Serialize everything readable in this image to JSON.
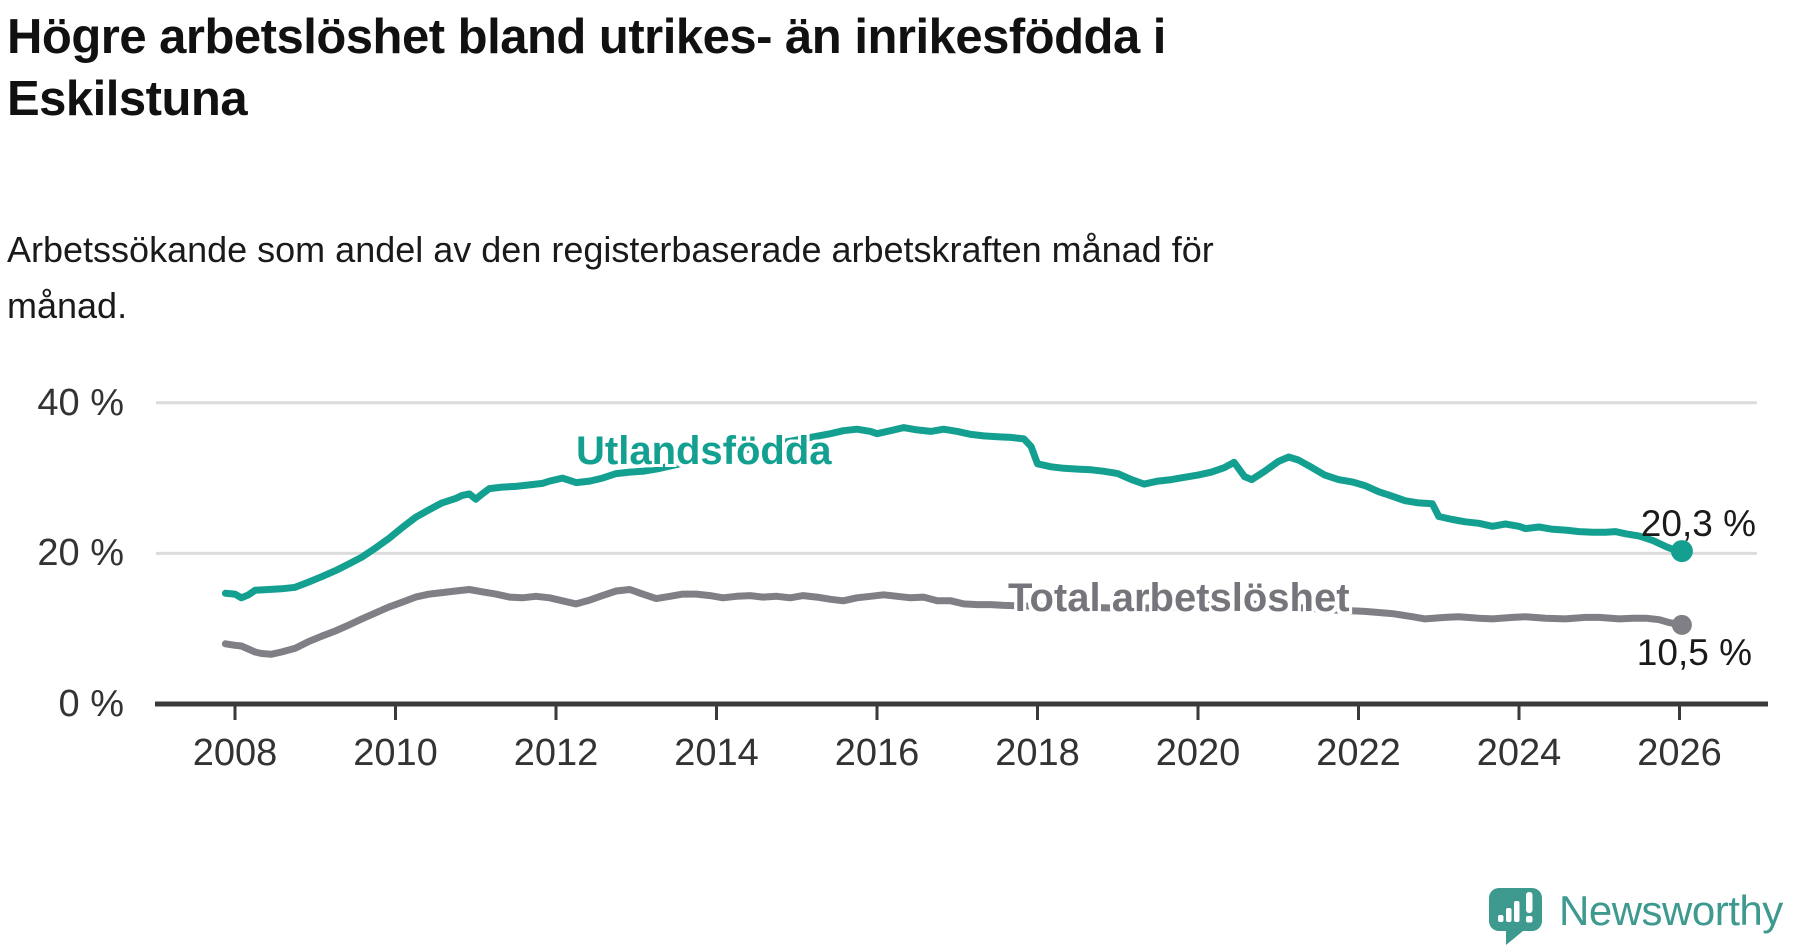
{
  "title": {
    "line1": "Högre arbetslöshet bland utrikes- än inrikesfödda i",
    "line2": "Eskilstuna"
  },
  "subtitle": {
    "line1": "Arbetssökande som andel av den registerbaserade arbetskraften månad för",
    "line2": "månad."
  },
  "colors": {
    "gridline": "#dcdcdc",
    "axis": "#3a3a3a",
    "tick_label": "#333333",
    "title": "#111111",
    "end_label": "#1a1a1a",
    "teal": "#14a091",
    "gray": "#807f86",
    "gray_label": "#76757c"
  },
  "branding": {
    "wordmark": "Newsworthy",
    "logo_color": "#3e998f",
    "logo_icon": "speech-bubble-with-bar-chart-and-exclamation"
  },
  "chart_data": {
    "type": "line",
    "title": "Högre arbetslöshet bland utrikes- än inrikesfödda i Eskilstuna",
    "subtitle": "Arbetssökande som andel av den registerbaserade arbetskraften månad för månad.",
    "xlabel": "",
    "ylabel": "",
    "grid": "horizontal",
    "legend_position": "inline-labels",
    "x_axis": {
      "min": 2007.0,
      "max": 2027.1,
      "ticks": [
        2008,
        2010,
        2012,
        2014,
        2016,
        2018,
        2020,
        2022,
        2024,
        2026
      ]
    },
    "y_axis": {
      "min": 0,
      "max": 42,
      "ticks": [
        {
          "value": 0,
          "label": "0 %"
        },
        {
          "value": 20,
          "label": "20 %"
        },
        {
          "value": 40,
          "label": "40 %"
        }
      ]
    },
    "series": [
      {
        "name": "Utlandsfödda",
        "color": "#14a091",
        "label_color": "#14a091",
        "end_label": "20,3 %",
        "end_value": 20.3,
        "dot_radius": 11,
        "points": [
          [
            2007.88,
            14.7
          ],
          [
            2008.0,
            14.6
          ],
          [
            2008.08,
            14.1
          ],
          [
            2008.17,
            14.5
          ],
          [
            2008.25,
            15.1
          ],
          [
            2008.42,
            15.2
          ],
          [
            2008.58,
            15.3
          ],
          [
            2008.75,
            15.5
          ],
          [
            2008.92,
            16.2
          ],
          [
            2009.08,
            16.9
          ],
          [
            2009.25,
            17.7
          ],
          [
            2009.42,
            18.6
          ],
          [
            2009.58,
            19.5
          ],
          [
            2009.75,
            20.7
          ],
          [
            2009.92,
            22.0
          ],
          [
            2010.08,
            23.4
          ],
          [
            2010.25,
            24.8
          ],
          [
            2010.42,
            25.8
          ],
          [
            2010.58,
            26.7
          ],
          [
            2010.75,
            27.3
          ],
          [
            2010.83,
            27.7
          ],
          [
            2010.92,
            27.9
          ],
          [
            2011.0,
            27.2
          ],
          [
            2011.08,
            27.9
          ],
          [
            2011.17,
            28.6
          ],
          [
            2011.33,
            28.8
          ],
          [
            2011.5,
            28.9
          ],
          [
            2011.67,
            29.1
          ],
          [
            2011.83,
            29.3
          ],
          [
            2011.92,
            29.6
          ],
          [
            2012.08,
            30.0
          ],
          [
            2012.25,
            29.4
          ],
          [
            2012.42,
            29.6
          ],
          [
            2012.58,
            30.0
          ],
          [
            2012.75,
            30.6
          ],
          [
            2012.92,
            30.8
          ],
          [
            2013.08,
            30.9
          ],
          [
            2013.25,
            31.2
          ],
          [
            2013.42,
            31.6
          ],
          [
            2013.67,
            32.2
          ],
          [
            2013.92,
            32.8
          ],
          [
            2014.17,
            33.3
          ],
          [
            2014.42,
            33.9
          ],
          [
            2014.67,
            34.4
          ],
          [
            2014.92,
            34.9
          ],
          [
            2015.17,
            35.4
          ],
          [
            2015.42,
            35.9
          ],
          [
            2015.58,
            36.3
          ],
          [
            2015.75,
            36.5
          ],
          [
            2015.92,
            36.2
          ],
          [
            2016.0,
            35.9
          ],
          [
            2016.17,
            36.3
          ],
          [
            2016.33,
            36.7
          ],
          [
            2016.5,
            36.4
          ],
          [
            2016.67,
            36.2
          ],
          [
            2016.83,
            36.5
          ],
          [
            2017.0,
            36.2
          ],
          [
            2017.17,
            35.8
          ],
          [
            2017.33,
            35.6
          ],
          [
            2017.5,
            35.5
          ],
          [
            2017.67,
            35.4
          ],
          [
            2017.83,
            35.2
          ],
          [
            2017.92,
            34.2
          ],
          [
            2018.0,
            31.9
          ],
          [
            2018.17,
            31.5
          ],
          [
            2018.33,
            31.3
          ],
          [
            2018.5,
            31.2
          ],
          [
            2018.67,
            31.1
          ],
          [
            2018.83,
            30.9
          ],
          [
            2019.0,
            30.6
          ],
          [
            2019.17,
            29.8
          ],
          [
            2019.33,
            29.2
          ],
          [
            2019.5,
            29.6
          ],
          [
            2019.67,
            29.8
          ],
          [
            2019.83,
            30.1
          ],
          [
            2020.0,
            30.4
          ],
          [
            2020.17,
            30.8
          ],
          [
            2020.33,
            31.4
          ],
          [
            2020.45,
            32.1
          ],
          [
            2020.58,
            30.2
          ],
          [
            2020.67,
            29.8
          ],
          [
            2020.83,
            30.9
          ],
          [
            2021.0,
            32.2
          ],
          [
            2021.13,
            32.8
          ],
          [
            2021.25,
            32.4
          ],
          [
            2021.42,
            31.4
          ],
          [
            2021.58,
            30.4
          ],
          [
            2021.75,
            29.8
          ],
          [
            2021.92,
            29.5
          ],
          [
            2022.08,
            29.0
          ],
          [
            2022.25,
            28.2
          ],
          [
            2022.42,
            27.6
          ],
          [
            2022.58,
            27.0
          ],
          [
            2022.75,
            26.7
          ],
          [
            2022.92,
            26.6
          ],
          [
            2023.0,
            24.9
          ],
          [
            2023.17,
            24.5
          ],
          [
            2023.33,
            24.2
          ],
          [
            2023.5,
            24.0
          ],
          [
            2023.67,
            23.6
          ],
          [
            2023.83,
            23.9
          ],
          [
            2024.0,
            23.6
          ],
          [
            2024.08,
            23.3
          ],
          [
            2024.25,
            23.5
          ],
          [
            2024.42,
            23.2
          ],
          [
            2024.58,
            23.1
          ],
          [
            2024.75,
            22.9
          ],
          [
            2024.92,
            22.8
          ],
          [
            2025.08,
            22.8
          ],
          [
            2025.2,
            22.9
          ],
          [
            2025.33,
            22.6
          ],
          [
            2025.5,
            22.3
          ],
          [
            2025.67,
            21.7
          ],
          [
            2025.83,
            20.9
          ],
          [
            2025.95,
            20.4
          ],
          [
            2026.03,
            20.3
          ]
        ]
      },
      {
        "name": "Total arbetslöshet",
        "color": "#807f86",
        "label_color": "#76757c",
        "end_label": "10,5 %",
        "end_value": 10.5,
        "dot_radius": 10,
        "points": [
          [
            2007.88,
            8.0
          ],
          [
            2008.0,
            7.8
          ],
          [
            2008.08,
            7.7
          ],
          [
            2008.25,
            6.9
          ],
          [
            2008.33,
            6.7
          ],
          [
            2008.45,
            6.6
          ],
          [
            2008.58,
            6.9
          ],
          [
            2008.75,
            7.4
          ],
          [
            2008.92,
            8.3
          ],
          [
            2009.08,
            9.0
          ],
          [
            2009.25,
            9.7
          ],
          [
            2009.42,
            10.5
          ],
          [
            2009.58,
            11.3
          ],
          [
            2009.75,
            12.1
          ],
          [
            2009.92,
            12.9
          ],
          [
            2010.08,
            13.5
          ],
          [
            2010.25,
            14.2
          ],
          [
            2010.42,
            14.6
          ],
          [
            2010.58,
            14.8
          ],
          [
            2010.75,
            15.0
          ],
          [
            2010.92,
            15.2
          ],
          [
            2011.08,
            14.9
          ],
          [
            2011.25,
            14.6
          ],
          [
            2011.42,
            14.2
          ],
          [
            2011.58,
            14.1
          ],
          [
            2011.75,
            14.3
          ],
          [
            2011.92,
            14.1
          ],
          [
            2012.08,
            13.7
          ],
          [
            2012.25,
            13.3
          ],
          [
            2012.42,
            13.8
          ],
          [
            2012.58,
            14.4
          ],
          [
            2012.75,
            15.0
          ],
          [
            2012.92,
            15.2
          ],
          [
            2013.08,
            14.6
          ],
          [
            2013.25,
            14.0
          ],
          [
            2013.42,
            14.3
          ],
          [
            2013.58,
            14.6
          ],
          [
            2013.75,
            14.6
          ],
          [
            2013.92,
            14.4
          ],
          [
            2014.08,
            14.1
          ],
          [
            2014.25,
            14.3
          ],
          [
            2014.42,
            14.4
          ],
          [
            2014.58,
            14.2
          ],
          [
            2014.75,
            14.3
          ],
          [
            2014.92,
            14.1
          ],
          [
            2015.08,
            14.4
          ],
          [
            2015.25,
            14.2
          ],
          [
            2015.42,
            13.9
          ],
          [
            2015.58,
            13.7
          ],
          [
            2015.75,
            14.1
          ],
          [
            2015.92,
            14.3
          ],
          [
            2016.08,
            14.5
          ],
          [
            2016.25,
            14.3
          ],
          [
            2016.42,
            14.1
          ],
          [
            2016.58,
            14.2
          ],
          [
            2016.75,
            13.7
          ],
          [
            2016.92,
            13.7
          ],
          [
            2017.08,
            13.3
          ],
          [
            2017.25,
            13.2
          ],
          [
            2017.42,
            13.2
          ],
          [
            2017.58,
            13.1
          ],
          [
            2017.92,
            13.0
          ],
          [
            2018.33,
            12.9
          ],
          [
            2018.75,
            12.8
          ],
          [
            2019.17,
            12.7
          ],
          [
            2019.58,
            12.8
          ],
          [
            2020.0,
            13.0
          ],
          [
            2020.42,
            13.4
          ],
          [
            2020.83,
            13.2
          ],
          [
            2021.25,
            12.8
          ],
          [
            2021.67,
            12.5
          ],
          [
            2022.08,
            12.3
          ],
          [
            2022.42,
            12.0
          ],
          [
            2022.67,
            11.6
          ],
          [
            2022.83,
            11.3
          ],
          [
            2023.08,
            11.5
          ],
          [
            2023.25,
            11.6
          ],
          [
            2023.5,
            11.4
          ],
          [
            2023.67,
            11.3
          ],
          [
            2023.92,
            11.5
          ],
          [
            2024.08,
            11.6
          ],
          [
            2024.33,
            11.4
          ],
          [
            2024.58,
            11.3
          ],
          [
            2024.83,
            11.5
          ],
          [
            2025.0,
            11.5
          ],
          [
            2025.25,
            11.3
          ],
          [
            2025.42,
            11.4
          ],
          [
            2025.58,
            11.4
          ],
          [
            2025.75,
            11.2
          ],
          [
            2025.88,
            10.8
          ],
          [
            2026.03,
            10.5
          ]
        ]
      }
    ]
  }
}
